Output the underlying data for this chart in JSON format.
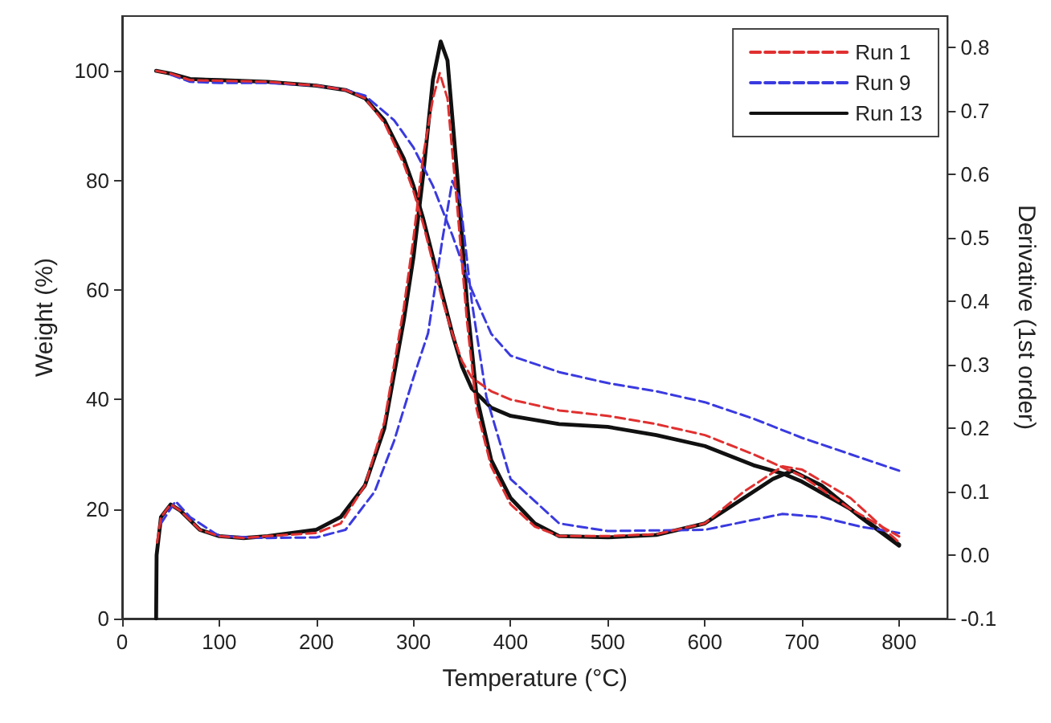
{
  "chart_data": {
    "type": "line",
    "xlabel": "Temperature (°C)",
    "ylabel": "Weight (%)",
    "y2label": "Derivative (1st order)",
    "xlim": [
      0,
      850
    ],
    "xticks": [
      0,
      100,
      200,
      300,
      400,
      500,
      600,
      700,
      800
    ],
    "ylim": [
      0,
      110
    ],
    "yticks": [
      0,
      20,
      40,
      60,
      80,
      100
    ],
    "y2lim": [
      -0.1,
      0.85
    ],
    "y2ticks": [
      -0.1,
      {
        "value": 0,
        "label": "0.0"
      },
      0.1,
      0.2,
      0.3,
      0.4,
      0.5,
      0.6,
      0.7,
      0.8
    ],
    "grid": false,
    "legend": "top right",
    "marker": "none",
    "series": [
      {
        "name": "Run 1",
        "color": "#e03030",
        "line_style": "dashed",
        "x": [
          35,
          50,
          70,
          100,
          150,
          200,
          230,
          250,
          270,
          290,
          300,
          310,
          320,
          330,
          340,
          350,
          360,
          380,
          400,
          450,
          500,
          550,
          600,
          650,
          700,
          750,
          800
        ],
        "values": [
          100,
          99.5,
          98.3,
          98.2,
          98,
          97.3,
          96.5,
          95,
          90.5,
          83,
          78,
          72,
          65,
          58,
          52,
          47,
          44,
          41.5,
          40,
          38,
          37,
          35.5,
          33.5,
          30,
          26,
          20,
          15
        ]
      },
      {
        "name": "Run 9",
        "color": "#3a3ae0",
        "line_style": "dashed",
        "x": [
          50,
          70,
          100,
          150,
          200,
          230,
          250,
          280,
          300,
          320,
          340,
          360,
          380,
          400,
          450,
          500,
          550,
          600,
          650,
          700,
          750,
          800
        ],
        "values": [
          99.3,
          98,
          97.8,
          97.8,
          97.3,
          96.5,
          95.5,
          91,
          86,
          79,
          70,
          60,
          52,
          48,
          45,
          43,
          41.5,
          39.5,
          36.5,
          33,
          30,
          27
        ]
      },
      {
        "name": "Run 13",
        "color": "#111111",
        "line_style": "solid",
        "x": [
          35,
          50,
          70,
          100,
          150,
          200,
          230,
          250,
          270,
          290,
          300,
          310,
          320,
          330,
          340,
          350,
          360,
          380,
          400,
          450,
          500,
          550,
          600,
          650,
          680,
          700,
          750,
          800
        ],
        "values": [
          100,
          99.5,
          98.5,
          98.3,
          98,
          97.3,
          96.5,
          95,
          91,
          84,
          79,
          73,
          66,
          59,
          52,
          46,
          42,
          38.5,
          37,
          35.5,
          35,
          33.5,
          31.5,
          28,
          26.5,
          25,
          20,
          13.5
        ]
      },
      {
        "color": "#e03030",
        "line_style": "dashed",
        "axis": "y2",
        "x": [
          36,
          40,
          50,
          60,
          80,
          100,
          125,
          150,
          200,
          225,
          250,
          270,
          290,
          300,
          310,
          320,
          327,
          335,
          345,
          355,
          365,
          380,
          400,
          425,
          450,
          500,
          550,
          600,
          640,
          680,
          700,
          750,
          800
        ],
        "values": [
          0.02,
          0.06,
          0.08,
          0.07,
          0.04,
          0.03,
          0.027,
          0.03,
          0.035,
          0.05,
          0.11,
          0.21,
          0.39,
          0.5,
          0.63,
          0.72,
          0.76,
          0.72,
          0.55,
          0.37,
          0.23,
          0.14,
          0.08,
          0.045,
          0.03,
          0.03,
          0.033,
          0.05,
          0.1,
          0.14,
          0.135,
          0.09,
          0.02
        ]
      },
      {
        "color": "#3a3ae0",
        "line_style": "dashed",
        "axis": "y2",
        "x": [
          40,
          55,
          70,
          100,
          150,
          200,
          230,
          260,
          280,
          300,
          315,
          330,
          340,
          348,
          360,
          375,
          400,
          450,
          500,
          600,
          680,
          720,
          760,
          800
        ],
        "values": [
          0.05,
          0.085,
          0.06,
          0.03,
          0.027,
          0.028,
          0.04,
          0.1,
          0.18,
          0.28,
          0.35,
          0.5,
          0.59,
          0.56,
          0.4,
          0.25,
          0.12,
          0.05,
          0.038,
          0.04,
          0.065,
          0.06,
          0.045,
          0.035
        ]
      },
      {
        "color": "#111111",
        "line_style": "solid",
        "axis": "y2",
        "x": [
          35,
          35.5,
          40,
          50,
          60,
          80,
          100,
          125,
          150,
          200,
          225,
          250,
          270,
          290,
          300,
          310,
          320,
          328,
          335,
          345,
          355,
          365,
          380,
          400,
          425,
          450,
          500,
          550,
          600,
          640,
          670,
          690,
          720,
          760,
          800
        ],
        "values": [
          -0.1,
          0.0,
          0.06,
          0.08,
          0.07,
          0.04,
          0.03,
          0.027,
          0.03,
          0.04,
          0.06,
          0.11,
          0.2,
          0.37,
          0.47,
          0.6,
          0.75,
          0.81,
          0.78,
          0.6,
          0.4,
          0.25,
          0.15,
          0.09,
          0.05,
          0.03,
          0.028,
          0.032,
          0.05,
          0.09,
          0.12,
          0.133,
          0.11,
          0.06,
          0.015
        ]
      }
    ]
  }
}
